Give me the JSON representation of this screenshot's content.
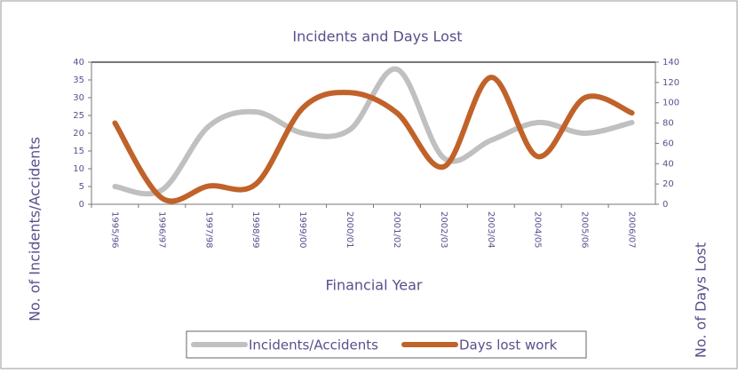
{
  "chart_data": {
    "type": "line",
    "title": "Incidents and Days Lost",
    "x_label": "Financial Year",
    "y_label": "No. of Incidents/Accidents",
    "y2_label": "No. of Days Lost",
    "categories": [
      "1995/96",
      "1996/97",
      "1997/98",
      "1998/99",
      "1999/00",
      "2000/01",
      "2001/02",
      "2002/03",
      "2003/04",
      "2004/05",
      "2005/06",
      "2006/07"
    ],
    "series": [
      {
        "name": "Incidents/Accidents",
        "color": "#c0c0c0",
        "values": [
          5,
          4,
          22,
          26,
          20,
          21,
          38,
          13,
          18,
          23,
          20,
          23
        ]
      },
      {
        "name": "Days lost work",
        "color": "#c0622a",
        "axis": "y2",
        "values": [
          80,
          6,
          18,
          20,
          95,
          110,
          90,
          37,
          125,
          47,
          105,
          90
        ]
      }
    ],
    "ylim": [
      0,
      40
    ],
    "yticks": [
      0,
      5,
      10,
      15,
      20,
      25,
      30,
      35,
      40
    ],
    "y2lim": [
      0,
      140
    ],
    "y2ticks": [
      0,
      20,
      40,
      60,
      80,
      100,
      120,
      140
    ],
    "legend": "bottom"
  }
}
